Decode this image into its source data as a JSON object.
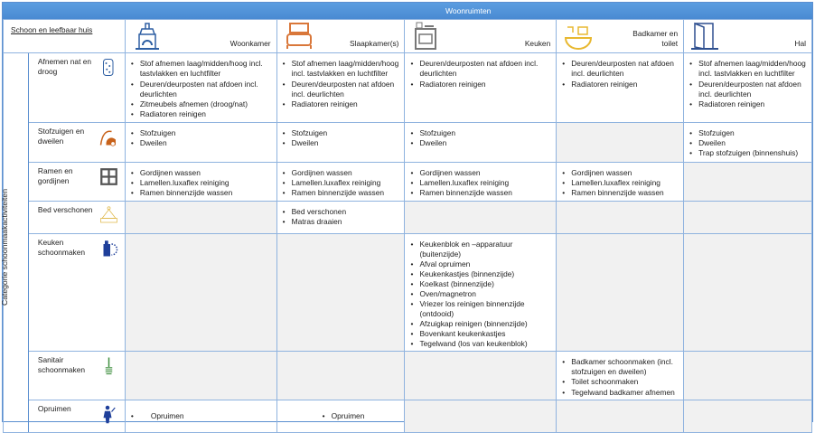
{
  "top_header": "Woonruimten",
  "corner_title": "Schoon en leefbaar huis",
  "vertical_label": "Categorie schoonmaakactiviteiten",
  "rooms": [
    {
      "label": "Woonkamer",
      "icon": "fireplace-icon",
      "color": "#2e5fa3"
    },
    {
      "label": "Slaapkamer(s)",
      "icon": "bed-icon",
      "color": "#d9773a"
    },
    {
      "label": "Keuken",
      "icon": "stove-icon",
      "color": "#777777"
    },
    {
      "label": "Badkamer en toilet",
      "icon": "bathtub-icon",
      "color": "#e8b830"
    },
    {
      "label": "Hal",
      "icon": "door-icon",
      "color": "#2e4f8f"
    }
  ],
  "categories": [
    {
      "label": "Afnemen nat en droog",
      "icon": "sponge-icon",
      "color": "#2e5fa3",
      "cells": [
        [
          "Stof afnemen laag/midden/hoog incl. tastvlakken en luchtfilter",
          "Deuren/deurposten nat afdoen incl. deurlichten",
          "Zitmeubels afnemen (droog/nat)",
          "Radiatoren reinigen"
        ],
        [
          "Stof afnemen laag/midden/hoog incl. tastvlakken en luchtfilter",
          "Deuren/deurposten nat afdoen incl. deurlichten",
          "Radiatoren reinigen"
        ],
        [
          "Deuren/deurposten nat afdoen incl. deurlichten",
          "Radiatoren reinigen"
        ],
        [
          "Deuren/deurposten nat afdoen incl. deurlichten",
          "Radiatoren reinigen"
        ],
        [
          "Stof afnemen laag/midden/hoog incl. tastvlakken en luchtfilter",
          "Deuren/deurposten nat afdoen incl. deurlichten",
          "Radiatoren reinigen"
        ]
      ]
    },
    {
      "label": "Stofzuigen en dweilen",
      "icon": "vacuum-cleaner-icon",
      "color": "#c8621a",
      "cells": [
        [
          "Stofzuigen",
          "Dweilen"
        ],
        [
          "Stofzuigen",
          "Dweilen"
        ],
        [
          "Stofzuigen",
          "Dweilen"
        ],
        [],
        [
          "Stofzuigen",
          "Dweilen",
          "Trap stofzuigen (binnenshuis)"
        ]
      ]
    },
    {
      "label": "Ramen en gordijnen",
      "icon": "window-icon",
      "color": "#555555",
      "cells": [
        [
          "Gordijnen wassen",
          "Lamellen.luxaflex reiniging",
          "Ramen binnenzijde wassen"
        ],
        [
          "Gordijnen wassen",
          "Lamellen.luxaflex reiniging",
          "Ramen binnenzijde wassen"
        ],
        [
          "Gordijnen wassen",
          "Lamellen.luxaflex reiniging",
          "Ramen binnenzijde wassen"
        ],
        [
          "Gordijnen wassen",
          "Lamellen.luxaflex reiniging",
          "Ramen binnenzijde wassen"
        ],
        []
      ]
    },
    {
      "label": "Bed verschonen",
      "icon": "bed-sheet-icon",
      "color": "#e0b84a",
      "cells": [
        [],
        [
          "Bed verschonen",
          "Matras draaien"
        ],
        [],
        [],
        []
      ]
    },
    {
      "label": "Keuken schoonmaken",
      "icon": "detergent-bottle-icon",
      "color": "#1f3f9a",
      "cells": [
        [],
        [],
        [
          "Keukenblok en –apparatuur (buitenzijde)",
          "Afval opruimen",
          "Keukenkastjes (binnenzijde)",
          "Koelkast (binnenzijde)",
          "Oven/magnetron",
          "Vriezer los reinigen binnenzijde (ontdooid)",
          "Afzuigkap reinigen (binnenzijde)",
          "Bovenkant keukenkastjes",
          "Tegelwand (los van keukenblok)"
        ],
        [],
        []
      ]
    },
    {
      "label": "Sanitair schoonmaken",
      "icon": "toilet-brush-icon",
      "color": "#3f8f3f",
      "cells": [
        [],
        [],
        [],
        [
          "Badkamer schoonmaken (incl. stofzuigen en dweilen)",
          "Toilet schoonmaken",
          "Tegelwand badkamer afnemen"
        ],
        []
      ]
    },
    {
      "label": "Opruimen",
      "icon": "person-tidying-icon",
      "color": "#1f3f9a",
      "cells": [
        [
          "Opruimen"
        ],
        [
          "Opruimen"
        ],
        [],
        [],
        []
      ]
    }
  ]
}
